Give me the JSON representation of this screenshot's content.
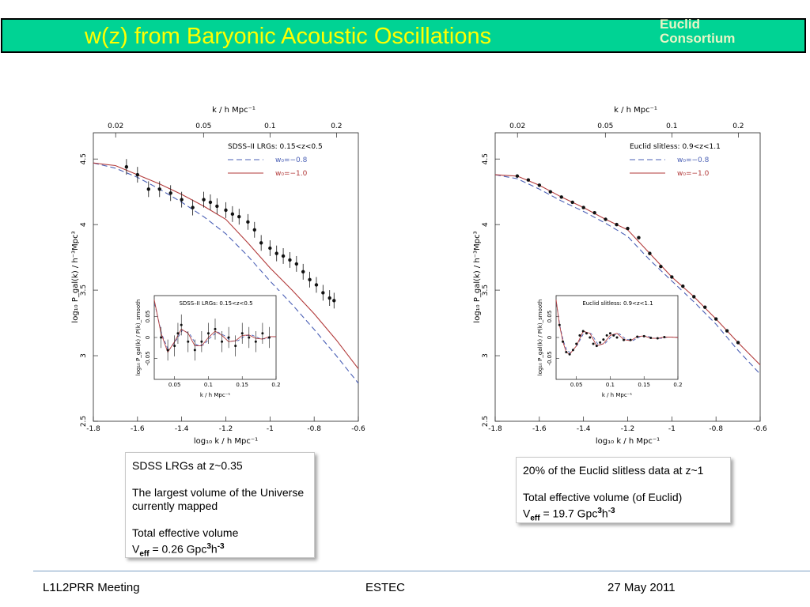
{
  "header": {
    "title": "w(z) from Baryonic Acoustic Oscillations",
    "consortium_line1": "Euclid",
    "consortium_line2": "Consortium",
    "bar_color": "#00d394",
    "title_color": "#ffff00"
  },
  "notes": {
    "left": {
      "line1": "SDSS LRGs at z~0.35",
      "line2": "The largest volume of the Universe currently mapped",
      "line3": "Total effective  volume",
      "veff_prefix": "V",
      "veff_sub": "eff",
      "veff_value": " =  0.26 Gpc",
      "veff_exp1": "3",
      "veff_unit": "h",
      "veff_exp2": "-3"
    },
    "right": {
      "line1": "20% of the Euclid slitless data at z~1",
      "line2": "Total effective  volume (of Euclid)",
      "veff_prefix": "V",
      "veff_sub": "eff",
      "veff_value": " =  19.7 Gpc",
      "veff_exp1": "3",
      "veff_unit": "h",
      "veff_exp2": "-3"
    }
  },
  "footer": {
    "left": "L1L2PRR Meeting",
    "center": "ESTEC",
    "right": "27 May 2011"
  },
  "chart_data": [
    {
      "type": "line",
      "id": "sdss",
      "legend_title": "SDSS–II LRGs: 0.15<z<0.5",
      "xlabel": "log₁₀ k / h Mpc⁻¹",
      "ylabel": "log₁₀ P_gal(k) / h⁻³Mpc³",
      "top_axis_label": "k / h Mpc⁻¹",
      "xlim": [
        -1.8,
        -0.6
      ],
      "ylim": [
        2.5,
        4.7
      ],
      "xticks": [
        "-1.8",
        "-1.6",
        "-1.4",
        "-1.2",
        "-1",
        "-0.8",
        "-0.6"
      ],
      "yticks": [
        "2.5",
        "3",
        "3.5",
        "4",
        "4.5"
      ],
      "top_ticks": [
        "0.02",
        "0.05",
        "0.1",
        "0.2"
      ],
      "series": [
        {
          "name": "w₀=−0.8",
          "color": "#4a5fb5",
          "dash": true,
          "x": [
            -1.8,
            -1.7,
            -1.6,
            -1.5,
            -1.4,
            -1.3,
            -1.2,
            -1.1,
            -1.0,
            -0.9,
            -0.8,
            -0.7,
            -0.6
          ],
          "y": [
            4.47,
            4.43,
            4.36,
            4.27,
            4.17,
            4.06,
            3.93,
            3.76,
            3.57,
            3.39,
            3.2,
            3.0,
            2.79
          ]
        },
        {
          "name": "w₀=−1.0",
          "color": "#b23a3a",
          "dash": false,
          "x": [
            -1.8,
            -1.7,
            -1.6,
            -1.5,
            -1.4,
            -1.3,
            -1.2,
            -1.1,
            -1.0,
            -0.9,
            -0.8,
            -0.7,
            -0.6
          ],
          "y": [
            4.47,
            4.45,
            4.38,
            4.31,
            4.23,
            4.14,
            4.04,
            3.86,
            3.67,
            3.5,
            3.32,
            3.12,
            2.9
          ]
        }
      ],
      "points": {
        "x": [
          -1.65,
          -1.6,
          -1.55,
          -1.5,
          -1.45,
          -1.4,
          -1.35,
          -1.3,
          -1.27,
          -1.24,
          -1.2,
          -1.17,
          -1.14,
          -1.1,
          -1.07,
          -1.04,
          -1.0,
          -0.97,
          -0.94,
          -0.91,
          -0.88,
          -0.85,
          -0.82,
          -0.79,
          -0.76,
          -0.73,
          -0.71
        ],
        "y": [
          4.44,
          4.38,
          4.27,
          4.27,
          4.24,
          4.19,
          4.13,
          4.19,
          4.17,
          4.14,
          4.11,
          4.08,
          4.06,
          4.02,
          3.96,
          3.86,
          3.82,
          3.78,
          3.76,
          3.73,
          3.7,
          3.64,
          3.58,
          3.54,
          3.48,
          3.44,
          3.42
        ],
        "err": 0.06
      },
      "legend_entries": [
        "w₀=−0.8",
        "w₀=−1.0"
      ],
      "inset": {
        "title": "SDSS–II LRGs: 0.15<z<0.5",
        "xlabel": "k / h Mpc⁻¹",
        "ylabel": "log₁₀ P_gal(k) / P(k)_smooth",
        "xlim": [
          0.02,
          0.2
        ],
        "ylim": [
          -0.1,
          0.1
        ],
        "xticks": [
          "0.05",
          "0.1",
          "0.15",
          "0.2"
        ],
        "yticks": [
          "-0.05",
          "0",
          "0.05"
        ],
        "curve_x": [
          0.02,
          0.03,
          0.04,
          0.05,
          0.06,
          0.07,
          0.08,
          0.09,
          0.1,
          0.11,
          0.12,
          0.13,
          0.14,
          0.15,
          0.16,
          0.17,
          0.18,
          0.19,
          0.2
        ],
        "curve_y": [
          0.09,
          0.01,
          -0.035,
          -0.01,
          0.02,
          0.01,
          -0.02,
          -0.02,
          0.0,
          0.015,
          0.005,
          -0.01,
          -0.008,
          0.005,
          0.006,
          -0.002,
          -0.004,
          0.002,
          0.002
        ],
        "points_x": [
          0.03,
          0.04,
          0.05,
          0.055,
          0.06,
          0.07,
          0.08,
          0.09,
          0.1,
          0.11,
          0.12,
          0.13,
          0.14,
          0.15,
          0.16,
          0.17,
          0.18,
          0.19
        ],
        "points_y": [
          0.0,
          -0.03,
          -0.02,
          0.01,
          0.03,
          -0.01,
          -0.03,
          -0.01,
          0.01,
          0.02,
          -0.01,
          0.0,
          -0.02,
          0.01,
          0.0,
          -0.01,
          0.01,
          0.0
        ],
        "err": 0.025
      }
    },
    {
      "type": "line",
      "id": "euclid",
      "legend_title": "Euclid slitless: 0.9<z<1.1",
      "xlabel": "log₁₀ k / h Mpc⁻¹",
      "ylabel": "log₁₀ P_gal(k) / h⁻³Mpc³",
      "top_axis_label": "k / h Mpc⁻¹",
      "xlim": [
        -1.8,
        -0.6
      ],
      "ylim": [
        2.5,
        4.7
      ],
      "xticks": [
        "-1.8",
        "-1.6",
        "-1.4",
        "-1.2",
        "-1",
        "-0.8",
        "-0.6"
      ],
      "yticks": [
        "2.5",
        "3",
        "3.5",
        "4",
        "4.5"
      ],
      "top_ticks": [
        "0.02",
        "0.05",
        "0.1",
        "0.2"
      ],
      "series": [
        {
          "name": "w₀=−0.8",
          "color": "#4a5fb5",
          "dash": true,
          "x": [
            -1.8,
            -1.7,
            -1.6,
            -1.5,
            -1.4,
            -1.3,
            -1.2,
            -1.1,
            -1.0,
            -0.9,
            -0.8,
            -0.7,
            -0.6
          ],
          "y": [
            4.38,
            4.35,
            4.27,
            4.18,
            4.1,
            4.01,
            3.91,
            3.73,
            3.57,
            3.41,
            3.24,
            3.04,
            2.86
          ]
        },
        {
          "name": "w₀=−1.0",
          "color": "#b23a3a",
          "dash": false,
          "x": [
            -1.8,
            -1.7,
            -1.6,
            -1.5,
            -1.4,
            -1.3,
            -1.2,
            -1.1,
            -1.0,
            -0.9,
            -0.8,
            -0.7,
            -0.6
          ],
          "y": [
            4.38,
            4.37,
            4.3,
            4.21,
            4.13,
            4.04,
            3.96,
            3.78,
            3.6,
            3.45,
            3.28,
            3.1,
            2.93
          ]
        }
      ],
      "points": {
        "x": [
          -1.7,
          -1.65,
          -1.6,
          -1.55,
          -1.5,
          -1.45,
          -1.4,
          -1.35,
          -1.3,
          -1.25,
          -1.2,
          -1.15,
          -1.1,
          -1.05,
          -1.0,
          -0.95,
          -0.9,
          -0.85,
          -0.8,
          -0.75,
          -0.7
        ],
        "y": [
          4.37,
          4.34,
          4.3,
          4.25,
          4.21,
          4.17,
          4.13,
          4.09,
          4.04,
          4.0,
          3.97,
          3.9,
          3.78,
          3.68,
          3.6,
          3.53,
          3.45,
          3.37,
          3.28,
          3.19,
          3.1
        ],
        "err": 0.0
      },
      "legend_entries": [
        "w₀=−0.8",
        "w₀=−1.0"
      ],
      "inset": {
        "title": "Euclid slitless: 0.9<z<1.1",
        "xlabel": "k / h Mpc⁻¹",
        "ylabel": "log₁₀ P_gal(k) / P(k)_smooth",
        "xlim": [
          0.02,
          0.2
        ],
        "ylim": [
          -0.1,
          0.1
        ],
        "xticks": [
          "0.05",
          "0.1",
          "0.15",
          "0.2"
        ],
        "yticks": [
          "-0.05",
          "0",
          "0.05"
        ],
        "curve_x": [
          0.02,
          0.025,
          0.03,
          0.035,
          0.04,
          0.05,
          0.06,
          0.07,
          0.08,
          0.09,
          0.1,
          0.11,
          0.12,
          0.13,
          0.14,
          0.15,
          0.16,
          0.17,
          0.18,
          0.19,
          0.2
        ],
        "curve_y": [
          0.09,
          0.03,
          -0.01,
          -0.035,
          -0.04,
          -0.02,
          0.015,
          0.01,
          -0.02,
          -0.015,
          0.005,
          0.01,
          -0.005,
          -0.008,
          0.002,
          0.004,
          -0.002,
          -0.002,
          0.001,
          0.001,
          0.0
        ],
        "points_x": [
          0.025,
          0.03,
          0.035,
          0.04,
          0.045,
          0.05,
          0.055,
          0.06,
          0.065,
          0.07,
          0.075,
          0.08,
          0.085,
          0.09,
          0.095,
          0.1,
          0.105,
          0.11,
          0.12,
          0.13,
          0.14,
          0.15,
          0.16,
          0.17,
          0.18
        ],
        "points_y": [
          0.03,
          -0.01,
          -0.035,
          -0.04,
          -0.03,
          -0.015,
          0.005,
          0.015,
          0.01,
          0.0,
          -0.015,
          -0.02,
          -0.012,
          -0.005,
          0.005,
          0.01,
          0.005,
          0.0,
          -0.006,
          -0.006,
          0.002,
          0.003,
          -0.001,
          -0.002,
          0.001
        ],
        "err": 0.0
      }
    }
  ]
}
